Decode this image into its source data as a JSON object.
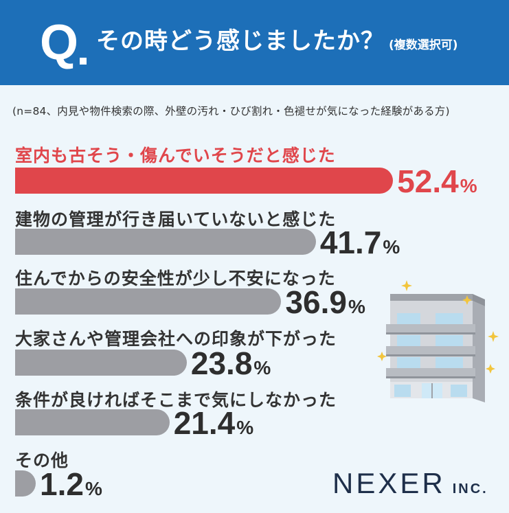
{
  "header": {
    "q_letter": "Q",
    "title": "その時どう感じましたか？",
    "title_sub": "(複数選択可)",
    "bg_color": "#1d6fb8"
  },
  "note": "(n=84、内見や物件検索の際、外壁の汚れ・ひび割れ・色褪せが気になった経験がある方)",
  "chart_data": {
    "type": "bar",
    "orientation": "horizontal",
    "categories": [
      "室内も古そう・傷んでいそうだと感じた",
      "建物の管理が行き届いていないと感じた",
      "住んでからの安全性が少し不安になった",
      "大家さんや管理会社への印象が下がった",
      "条件が良ければそこまで気にしなかった",
      "その他"
    ],
    "values": [
      52.4,
      41.7,
      36.9,
      23.8,
      21.4,
      1.2
    ],
    "value_labels": [
      "52.4",
      "41.7",
      "36.9",
      "23.8",
      "21.4",
      "1.2"
    ],
    "unit": "%",
    "highlight_index": 0,
    "highlight_color": "#e0464b",
    "bar_color": "#9d9ea3",
    "xlim": [
      0,
      100
    ],
    "grid": false,
    "legend": "none"
  },
  "logo": {
    "main": "NEXER",
    "sub": "INC."
  },
  "illustration": {
    "icon": "apartment-building-icon"
  }
}
